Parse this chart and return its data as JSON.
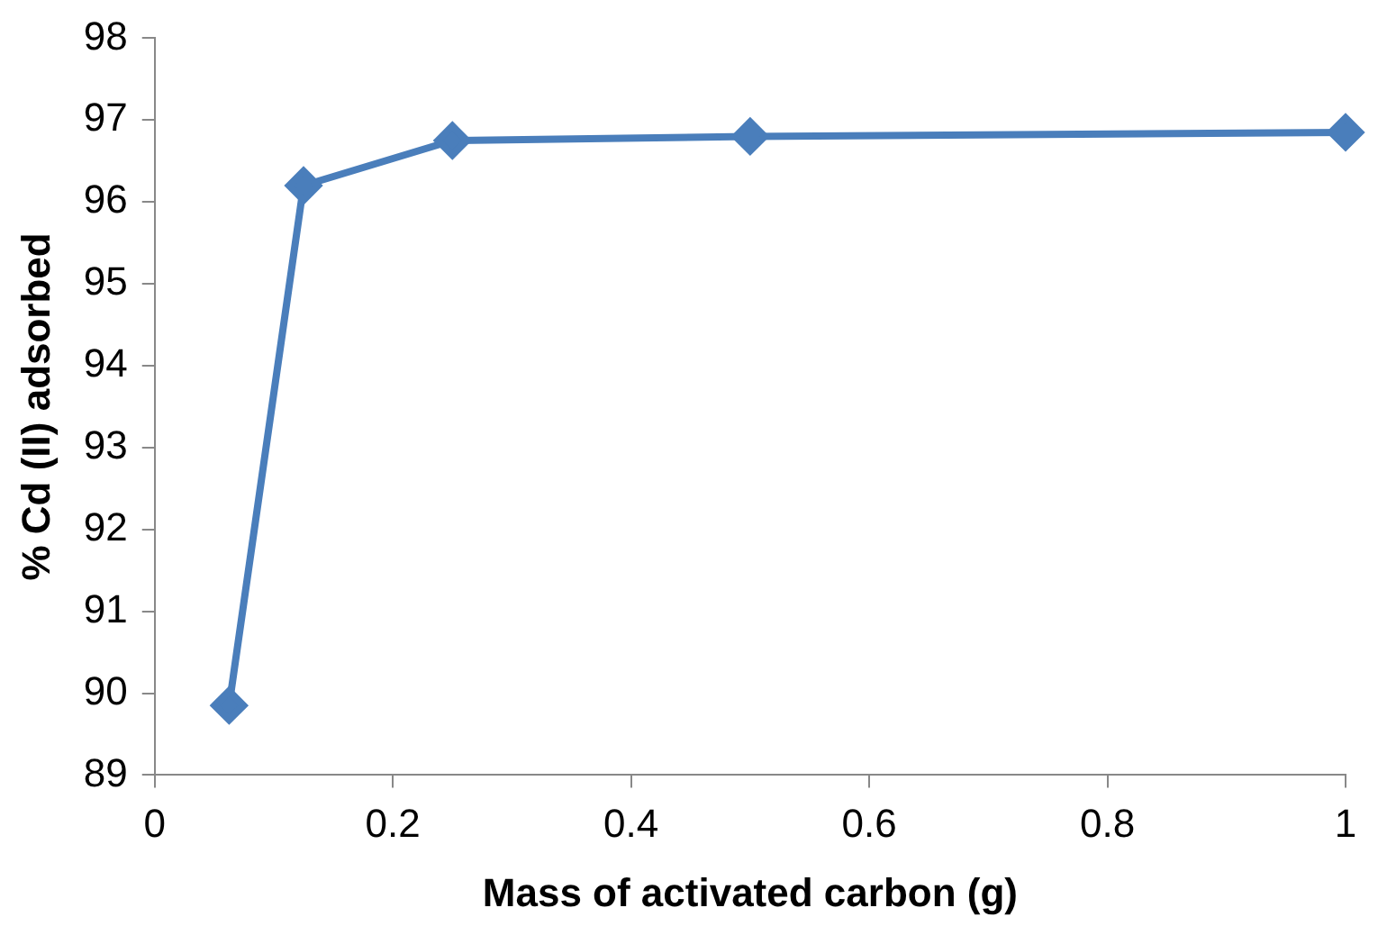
{
  "chart_data": {
    "type": "line",
    "xlabel": "Mass of activated carbon (g)",
    "ylabel": "% Cd (II) adsorbed",
    "x": [
      0.0625,
      0.125,
      0.25,
      0.5,
      1
    ],
    "series": [
      {
        "color": "#4a7ebb",
        "values": [
          89.85,
          96.2,
          96.75,
          96.8,
          96.85
        ]
      }
    ],
    "xlim": [
      0,
      1
    ],
    "xticks": [
      0,
      0.2,
      0.4,
      0.6,
      0.8,
      1
    ],
    "ylim": [
      89,
      98
    ],
    "yticks": [
      89,
      90,
      91,
      92,
      93,
      94,
      95,
      96,
      97,
      98
    ],
    "grid": false,
    "legend": false,
    "marker": "diamond",
    "line_style": "solid"
  }
}
